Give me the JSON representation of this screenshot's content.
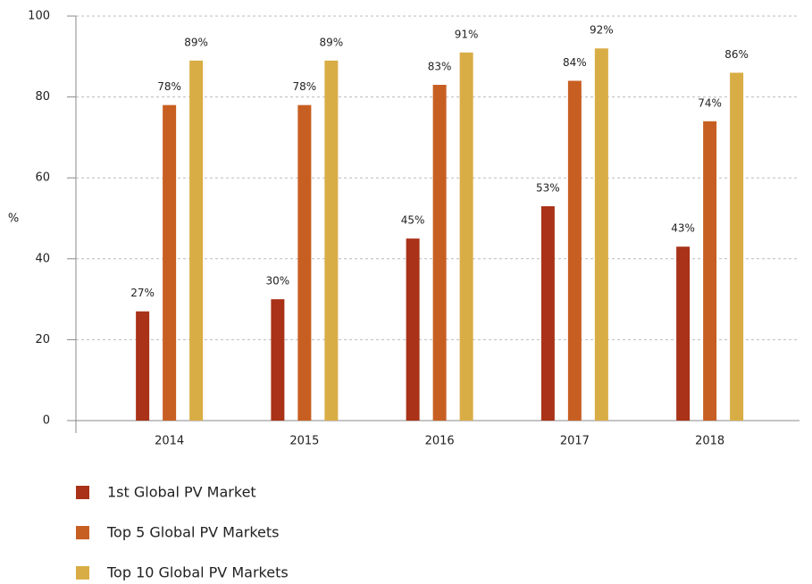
{
  "chart_data": {
    "type": "bar",
    "ylabel": "%",
    "categories": [
      "2014",
      "2015",
      "2016",
      "2017",
      "2018"
    ],
    "series": [
      {
        "name": "1st Global PV Market",
        "color": "#a93218",
        "values": [
          27,
          30,
          45,
          53,
          43
        ],
        "value_labels": [
          "27%",
          "30%",
          "45%",
          "53%",
          "43%"
        ]
      },
      {
        "name": "Top 5 Global PV Markets",
        "color": "#c85f22",
        "values": [
          78,
          78,
          83,
          84,
          74
        ],
        "value_labels": [
          "78%",
          "78%",
          "83%",
          "84%",
          "74%"
        ]
      },
      {
        "name": "Top 10 Global PV Markets",
        "color": "#d9ad45",
        "values": [
          89,
          89,
          91,
          92,
          86
        ],
        "value_labels": [
          "89%",
          "89%",
          "91%",
          "92%",
          "86%"
        ]
      }
    ],
    "ylim": [
      0,
      100
    ],
    "yticks": [
      0,
      20,
      40,
      60,
      80,
      100
    ],
    "grid": true
  }
}
